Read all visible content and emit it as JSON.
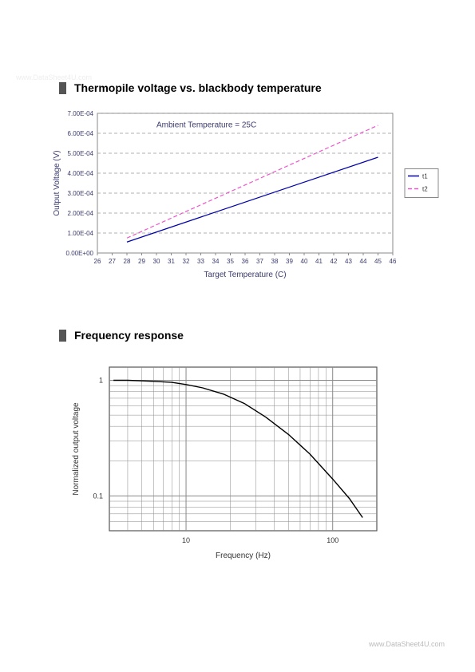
{
  "watermarks": {
    "top": "www.DataSheet4U.com",
    "bottom": "www.DataSheet4U.com"
  },
  "chart1": {
    "section_title": "Thermopile voltage vs. blackbody temperature",
    "type": "line",
    "annotation": "Ambient Temperature = 25C",
    "xlabel": "Target Temperature (C)",
    "ylabel": "Output Voltage (V)",
    "xlim": [
      26,
      46
    ],
    "ylim": [
      0,
      0.0007
    ],
    "xtick_step": 1,
    "xticks": [
      "26",
      "27",
      "28",
      "29",
      "30",
      "31",
      "32",
      "33",
      "34",
      "35",
      "36",
      "37",
      "38",
      "39",
      "40",
      "41",
      "42",
      "43",
      "44",
      "45",
      "46"
    ],
    "yticks": [
      "0.00E+00",
      "1.00E-04",
      "2.00E-04",
      "3.00E-04",
      "4.00E-04",
      "5.00E-04",
      "6.00E-04",
      "7.00E-04"
    ],
    "grid_color": "#999999",
    "grid_dash": "4,3",
    "border_color": "#888888",
    "background_color": "#ffffff",
    "series": [
      {
        "name": "t1",
        "color": "#0000aa",
        "dash": "none",
        "x": [
          28,
          45
        ],
        "y": [
          5.5e-05,
          0.00048
        ]
      },
      {
        "name": "t2",
        "color": "#ee55cc",
        "dash": "5,3",
        "x": [
          28,
          45
        ],
        "y": [
          7.5e-05,
          0.00064
        ]
      }
    ],
    "legend": {
      "items": [
        "t1",
        "t2"
      ],
      "border_color": "#888888"
    },
    "label_fontsize": 10,
    "tick_fontsize": 8,
    "axis_label_color": "#3a3a6e"
  },
  "chart2": {
    "section_title": "Frequency response",
    "type": "line-loglog",
    "xlabel": "Frequency (Hz)",
    "ylabel": "Normalized output voltage",
    "xscale": "log",
    "yscale": "log",
    "xlim": [
      3,
      200
    ],
    "ylim": [
      0.05,
      1.3
    ],
    "xticks_major": [
      10,
      100
    ],
    "yticks_major": [
      0.1,
      1
    ],
    "grid_color": "#888888",
    "border_color": "#555555",
    "background_color": "#ffffff",
    "series": [
      {
        "name": "response",
        "color": "#000000",
        "x": [
          3.2,
          4,
          5,
          6,
          8,
          10,
          13,
          18,
          25,
          35,
          50,
          70,
          100,
          130,
          160
        ],
        "y": [
          1.0,
          1.0,
          0.99,
          0.98,
          0.96,
          0.92,
          0.86,
          0.76,
          0.63,
          0.48,
          0.34,
          0.23,
          0.14,
          0.095,
          0.065
        ]
      }
    ],
    "label_fontsize": 10,
    "tick_fontsize": 9,
    "axis_label_color": "#333333"
  }
}
